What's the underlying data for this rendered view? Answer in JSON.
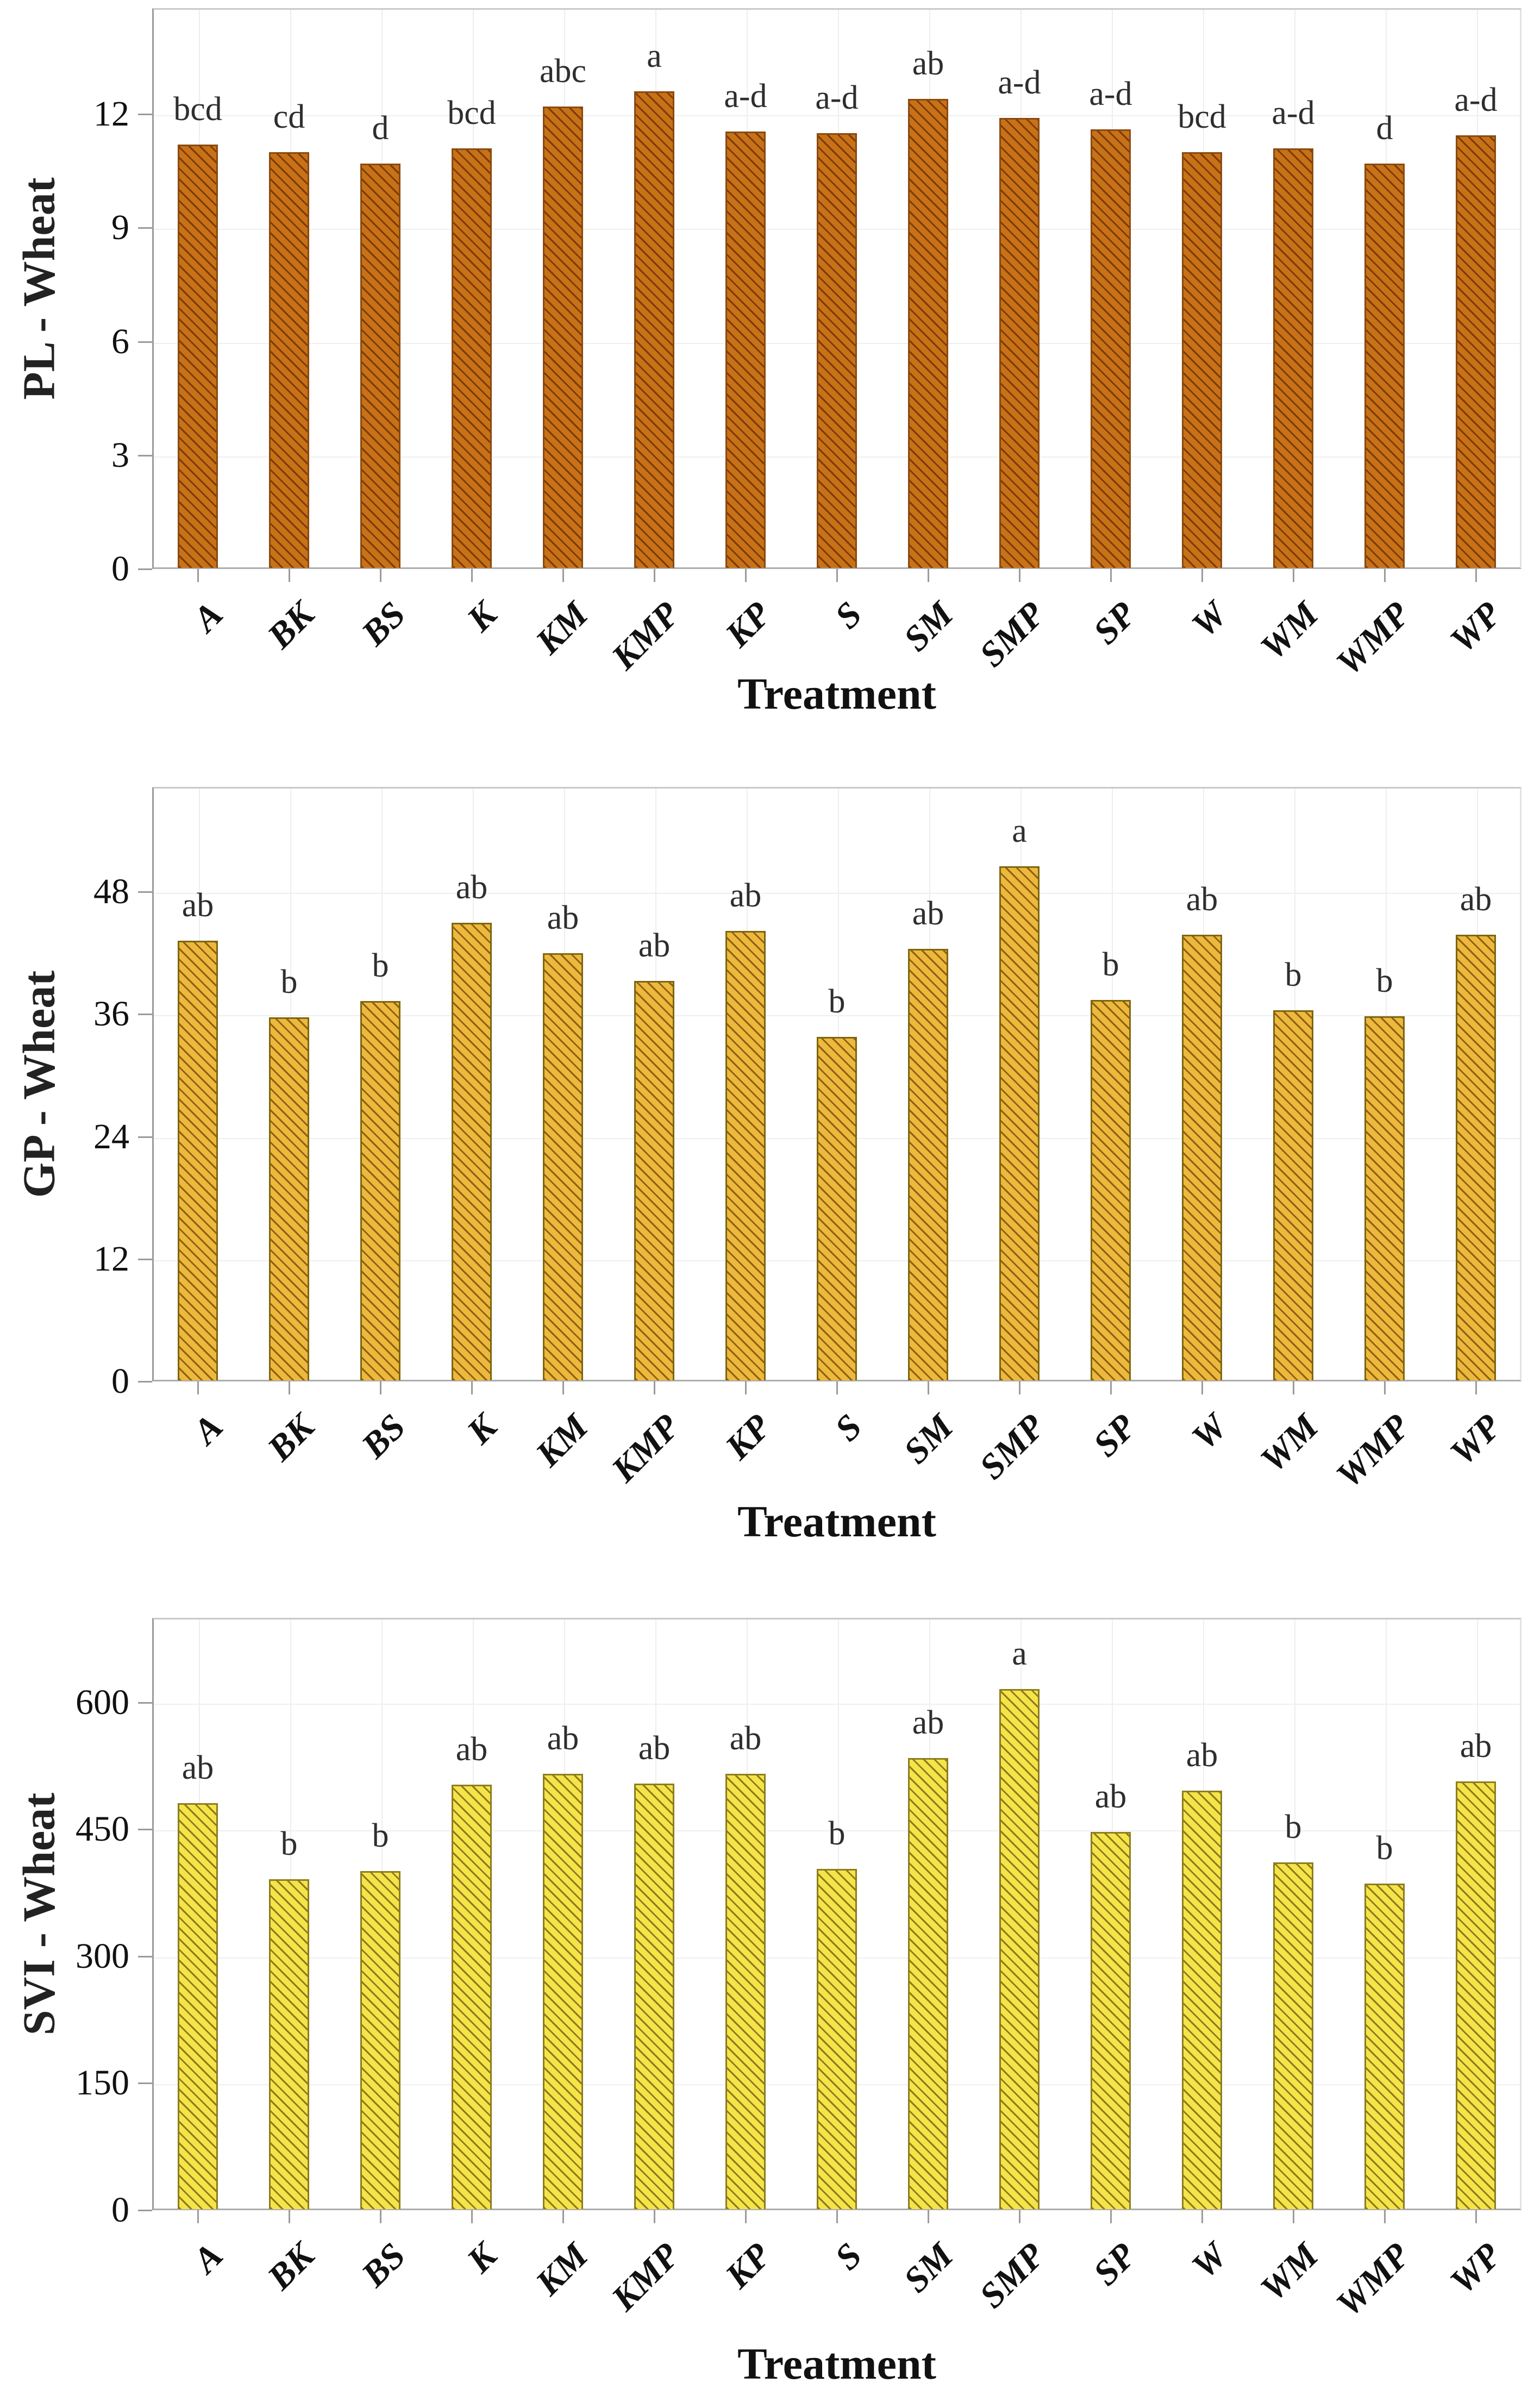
{
  "figure": {
    "description": "Three stacked bar-chart panels of wheat seed parameters by treatment",
    "x_axis_title": "Treatment"
  },
  "chart_data": [
    {
      "type": "bar",
      "title": "",
      "ylabel": "PL - Wheat",
      "xlabel": "Treatment",
      "categories": [
        "A",
        "BK",
        "BS",
        "K",
        "KM",
        "KMP",
        "KP",
        "S",
        "SM",
        "SMP",
        "SP",
        "W",
        "WM",
        "WMP",
        "WP"
      ],
      "values": [
        11.2,
        11.0,
        10.7,
        11.1,
        12.2,
        12.6,
        11.55,
        11.5,
        12.4,
        11.9,
        11.6,
        11.0,
        11.1,
        10.7,
        11.45
      ],
      "sig_letters": [
        "bcd",
        "cd",
        "d",
        "bcd",
        "abc",
        "a",
        "a-d",
        "a-d",
        "ab",
        "a-d",
        "a-d",
        "bcd",
        "a-d",
        "d",
        "a-d"
      ],
      "yticks": [
        0,
        3,
        6,
        9,
        12
      ],
      "ylim": [
        0,
        14.8
      ],
      "grid": true,
      "legend": "none",
      "bar_color": "#c87117",
      "hatch_color": "#7a3c06",
      "border_color": "#8a4a10"
    },
    {
      "type": "bar",
      "title": "",
      "ylabel": "GP - Wheat",
      "xlabel": "Treatment",
      "categories": [
        "A",
        "BK",
        "BS",
        "K",
        "KM",
        "KMP",
        "KP",
        "S",
        "SM",
        "SMP",
        "SP",
        "W",
        "WM",
        "WMP",
        "WP"
      ],
      "values": [
        43.2,
        35.7,
        37.3,
        45.0,
        42.0,
        39.3,
        44.2,
        33.8,
        42.4,
        50.5,
        37.4,
        43.8,
        36.4,
        35.8,
        43.8
      ],
      "sig_letters": [
        "ab",
        "b",
        "b",
        "ab",
        "ab",
        "ab",
        "ab",
        "b",
        "ab",
        "a",
        "b",
        "ab",
        "b",
        "b",
        "ab"
      ],
      "yticks": [
        0,
        12,
        24,
        36,
        48
      ],
      "ylim": [
        0,
        58.3
      ],
      "grid": true,
      "legend": "none",
      "bar_color": "#eeb83d",
      "hatch_color": "#8a6211",
      "border_color": "#7d660f"
    },
    {
      "type": "bar",
      "title": "",
      "ylabel": "SVI - Wheat",
      "xlabel": "Treatment",
      "categories": [
        "A",
        "BK",
        "BS",
        "K",
        "KM",
        "KMP",
        "KP",
        "S",
        "SM",
        "SMP",
        "SP",
        "W",
        "WM",
        "WMP",
        "WP"
      ],
      "values": [
        481,
        391,
        401,
        503,
        516,
        504,
        516,
        403,
        534,
        616,
        447,
        496,
        411,
        386,
        507
      ],
      "sig_letters": [
        "ab",
        "b",
        "b",
        "ab",
        "ab",
        "ab",
        "ab",
        "b",
        "ab",
        "a",
        "ab",
        "ab",
        "b",
        "b",
        "ab"
      ],
      "yticks": [
        0,
        150,
        300,
        450,
        600
      ],
      "ylim": [
        0,
        700
      ],
      "grid": true,
      "legend": "none",
      "bar_color": "#f5e449",
      "hatch_color": "#8d7a1a",
      "border_color": "#8d7d1e"
    }
  ]
}
